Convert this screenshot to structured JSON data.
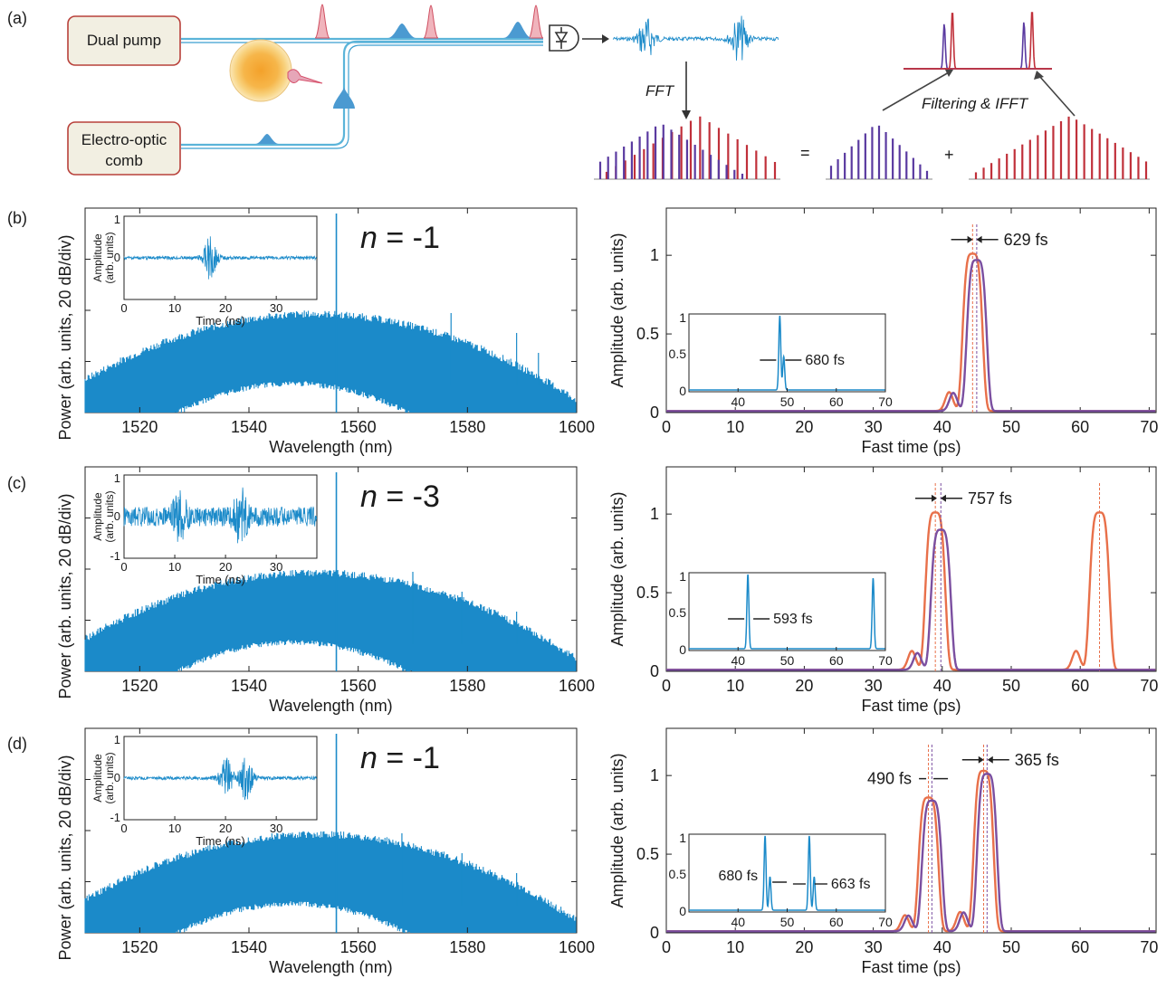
{
  "figure": {
    "panel_labels": [
      "(a)",
      "(b)",
      "(c)",
      "(d)"
    ]
  },
  "schematic": {
    "dual_pump_label": "Dual pump",
    "eo_comb_label": [
      "Electro-optic",
      "comb"
    ],
    "fft_label": "FFT",
    "filter_label": "Filtering & IFFT",
    "equals": "=",
    "plus": "+"
  },
  "colors": {
    "spectrum": "#1b8ac9",
    "trace_orange": "#e8704a",
    "trace_purple": "#7b4fa0",
    "bar_red": "#c0303a",
    "bar_purple": "#5a3aa0",
    "box_fill": "#f2efe2",
    "box_stroke": "#b8403a",
    "fiber": "#5bb4d9"
  },
  "chart_data": [
    {
      "type": "line",
      "panel": "(b) left",
      "xlabel": "Wavelength (nm)",
      "ylabel": "Power (arb. units, 20 dB/div)",
      "xlim": [
        1510,
        1600
      ],
      "xticks": [
        "1520",
        "1540",
        "1560",
        "1580",
        "1600"
      ],
      "annotation": {
        "italic": "n",
        "text": " = -1"
      },
      "peak_nm": 1556,
      "side_lines_nm": [
        1577,
        1589,
        1593
      ],
      "inset": {
        "xlabel": "Time (ns)",
        "ylabel": [
          "Amplitude",
          "(arb. units)"
        ],
        "xlim": [
          0,
          38
        ],
        "xticks": [
          "0",
          "10",
          "20",
          "30"
        ],
        "yticks": [
          "1",
          "0"
        ],
        "bursts_ns": [
          17
        ]
      }
    },
    {
      "type": "line",
      "panel": "(b) right",
      "xlabel": "Fast time (ps)",
      "ylabel": "Amplitude (arb. units)",
      "xlim": [
        0,
        71
      ],
      "ylim": [
        0,
        1.3
      ],
      "xticks": [
        "0",
        "10",
        "20",
        "30",
        "40",
        "50",
        "60",
        "70"
      ],
      "yticks": [
        "0",
        "0.5",
        "1"
      ],
      "annotations": [
        {
          "text": "629 fs",
          "at_ps": 44.7
        }
      ],
      "series": [
        {
          "color": "orange",
          "peaks": [
            {
              "t": 44.4,
              "a": 1.0,
              "w": 1.6
            }
          ]
        },
        {
          "color": "purple",
          "peaks": [
            {
              "t": 45.0,
              "a": 0.96,
              "w": 1.6
            }
          ]
        }
      ],
      "inset": {
        "xlim": [
          30,
          70
        ],
        "xticks": [
          "40",
          "50",
          "60",
          "70"
        ],
        "yticks": [
          "1",
          "0.5",
          "0"
        ],
        "annotation": "680 fs",
        "peaks": [
          {
            "t": 48.5,
            "a": 1.0
          },
          {
            "t": 49.3,
            "a": 0.45
          }
        ]
      }
    },
    {
      "type": "line",
      "panel": "(c) left",
      "xlabel": "Wavelength (nm)",
      "ylabel": "Power (arb. units, 20 dB/div)",
      "xlim": [
        1510,
        1600
      ],
      "xticks": [
        "1520",
        "1540",
        "1560",
        "1580",
        "1600"
      ],
      "annotation": {
        "italic": "n",
        "text": " = -3"
      },
      "peak_nm": 1556,
      "side_lines_nm": [
        1570,
        1579,
        1589
      ],
      "inset": {
        "xlabel": "Time (ns)",
        "ylabel": [
          "Amplitude",
          "(arb. units)"
        ],
        "xlim": [
          0,
          38
        ],
        "xticks": [
          "0",
          "10",
          "20",
          "30"
        ],
        "yticks": [
          "1",
          "0",
          "-1"
        ],
        "bursts_ns": [
          11,
          23
        ]
      }
    },
    {
      "type": "line",
      "panel": "(c) right",
      "xlabel": "Fast time (ps)",
      "ylabel": "Amplitude (arb. units)",
      "xlim": [
        0,
        71
      ],
      "ylim": [
        0,
        1.3
      ],
      "xticks": [
        "0",
        "10",
        "20",
        "30",
        "40",
        "50",
        "60",
        "70"
      ],
      "yticks": [
        "0",
        "0.5",
        "1"
      ],
      "annotations": [
        {
          "text": "757 fs",
          "at_ps": 39.5
        }
      ],
      "series": [
        {
          "color": "orange",
          "peaks": [
            {
              "t": 39.0,
              "a": 1.0,
              "w": 1.6
            },
            {
              "t": 62.8,
              "a": 1.0,
              "w": 1.6
            }
          ]
        },
        {
          "color": "purple",
          "peaks": [
            {
              "t": 39.8,
              "a": 0.89,
              "w": 1.6
            }
          ]
        }
      ],
      "inset": {
        "xlim": [
          30,
          70
        ],
        "xticks": [
          "40",
          "50",
          "60",
          "70"
        ],
        "yticks": [
          "1",
          "0.5",
          "0"
        ],
        "annotation": "593 fs",
        "peaks": [
          {
            "t": 42,
            "a": 1.0
          },
          {
            "t": 67.5,
            "a": 0.95
          }
        ]
      }
    },
    {
      "type": "line",
      "panel": "(d) left",
      "xlabel": "Wavelength (nm)",
      "ylabel": "Power (arb. units, 20 dB/div)",
      "xlim": [
        1510,
        1600
      ],
      "xticks": [
        "1520",
        "1540",
        "1560",
        "1580",
        "1600"
      ],
      "annotation": {
        "italic": "n",
        "text": " = -1"
      },
      "peak_nm": 1556,
      "side_lines_nm": [
        1568,
        1579,
        1589
      ],
      "inset": {
        "xlabel": "Time (ns)",
        "ylabel": [
          "Amplitude",
          "(arb. units)"
        ],
        "xlim": [
          0,
          38
        ],
        "xticks": [
          "0",
          "10",
          "20",
          "30"
        ],
        "yticks": [
          "1",
          "0",
          "-1"
        ],
        "bursts_ns": [
          20,
          24
        ]
      }
    },
    {
      "type": "line",
      "panel": "(d) right",
      "xlabel": "Fast time (ps)",
      "ylabel": "Amplitude (arb. units)",
      "xlim": [
        0,
        71
      ],
      "ylim": [
        0,
        1.3
      ],
      "xticks": [
        "0",
        "10",
        "20",
        "30",
        "40",
        "50",
        "60",
        "70"
      ],
      "yticks": [
        "0",
        "0.5",
        "1"
      ],
      "annotations": [
        {
          "text": "490 fs",
          "at_ps": 38.2
        },
        {
          "text": "365 fs",
          "at_ps": 46.3
        }
      ],
      "series": [
        {
          "color": "orange",
          "peaks": [
            {
              "t": 38.0,
              "a": 0.85,
              "w": 1.6
            },
            {
              "t": 46.0,
              "a": 1.02,
              "w": 1.6
            }
          ]
        },
        {
          "color": "purple",
          "peaks": [
            {
              "t": 38.5,
              "a": 0.83,
              "w": 1.6
            },
            {
              "t": 46.5,
              "a": 1.0,
              "w": 1.6
            }
          ]
        }
      ],
      "inset": {
        "xlim": [
          30,
          70
        ],
        "xticks": [
          "40",
          "50",
          "60",
          "70"
        ],
        "yticks": [
          "1",
          "0.5",
          "0"
        ],
        "annotations": [
          "680 fs",
          "663 fs"
        ],
        "peaks": [
          {
            "t": 45.5,
            "a": 1.0
          },
          {
            "t": 46.5,
            "a": 0.45
          },
          {
            "t": 54.5,
            "a": 1.0
          },
          {
            "t": 55.5,
            "a": 0.45
          }
        ]
      }
    }
  ]
}
